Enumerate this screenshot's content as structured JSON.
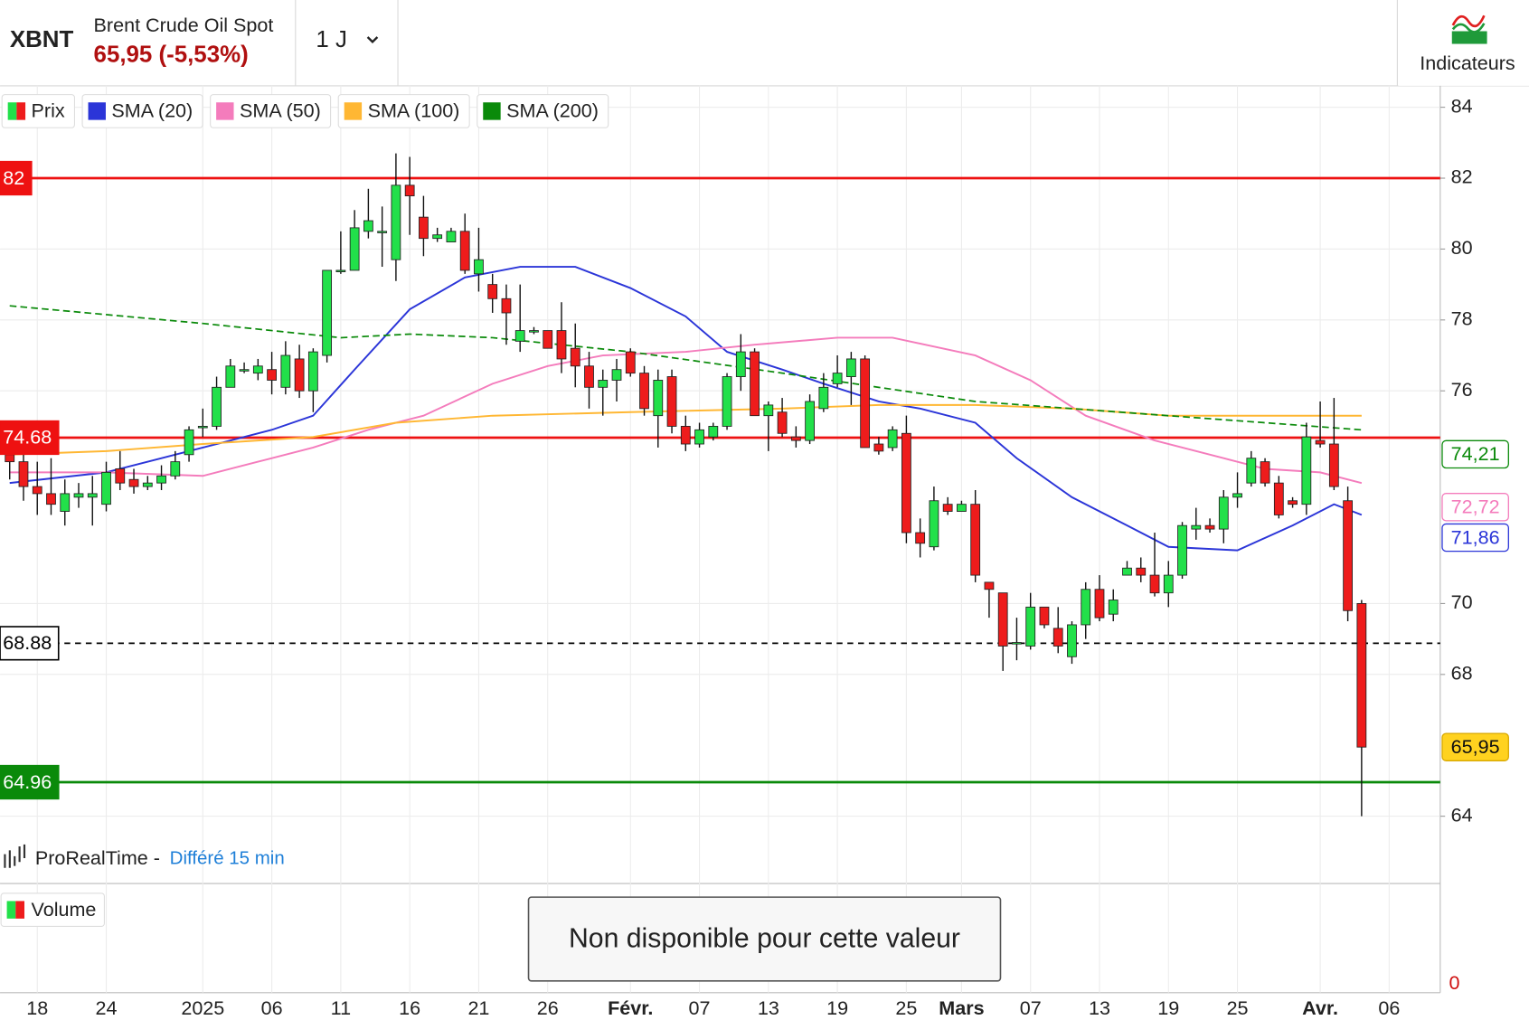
{
  "header": {
    "symbol": "XBNT",
    "name": "Brent Crude Oil Spot",
    "quote": "65,95 (-5,53%)",
    "interval": "1 J",
    "indicators_button": "Indicateurs"
  },
  "chart_data": {
    "type": "candlestick",
    "name": "Prix",
    "up_color": "#22e04a",
    "down_color": "#ee1c1c",
    "open": [
      74.2,
      74.0,
      73.3,
      73.1,
      72.6,
      73.0,
      73.0,
      72.8,
      73.8,
      73.5,
      73.3,
      73.4,
      73.6,
      74.2,
      75.0,
      75.0,
      76.1,
      76.6,
      76.5,
      76.6,
      76.1,
      76.9,
      76.0,
      77.0,
      79.4,
      79.4,
      80.5,
      80.5,
      79.7,
      81.8,
      80.9,
      80.3,
      80.2,
      80.5,
      79.3,
      79.0,
      78.6,
      77.4,
      77.7,
      77.7,
      77.7,
      77.2,
      76.7,
      76.1,
      76.3,
      77.1,
      76.5,
      75.3,
      76.4,
      75.0,
      74.5,
      74.7,
      75.0,
      76.4,
      77.1,
      75.3,
      75.4,
      74.7,
      74.6,
      75.5,
      76.2,
      76.4,
      76.9,
      74.5,
      74.4,
      74.8,
      72.0,
      71.6,
      72.8,
      72.6,
      72.8,
      70.6,
      70.3,
      68.9,
      68.8,
      69.9,
      69.3,
      68.5,
      69.4,
      70.4,
      69.7,
      70.8,
      71.0,
      70.8,
      70.3,
      70.8,
      72.1,
      72.2,
      72.1,
      73.0,
      73.4,
      74.0,
      73.4,
      72.9,
      72.8,
      74.6,
      74.5,
      72.9,
      70.0
    ],
    "high": [
      74.4,
      74.3,
      74.0,
      74.1,
      73.5,
      73.4,
      73.6,
      74.0,
      74.3,
      73.8,
      73.6,
      73.9,
      74.3,
      75.0,
      75.5,
      76.4,
      76.9,
      76.8,
      76.9,
      77.1,
      77.4,
      77.3,
      77.2,
      79.4,
      80.5,
      81.1,
      81.7,
      81.2,
      82.7,
      82.6,
      81.5,
      80.6,
      80.6,
      81.0,
      80.6,
      79.3,
      79.0,
      79.0,
      77.8,
      77.7,
      78.5,
      77.9,
      77.1,
      76.6,
      76.9,
      77.2,
      76.7,
      76.6,
      76.6,
      75.3,
      75.1,
      75.1,
      76.5,
      77.6,
      77.2,
      75.7,
      75.8,
      75.0,
      75.9,
      76.5,
      77.0,
      77.1,
      77.0,
      74.7,
      75.0,
      75.3,
      72.4,
      73.3,
      73.0,
      72.9,
      73.2,
      70.6,
      70.3,
      69.6,
      70.3,
      69.9,
      69.9,
      69.5,
      70.6,
      70.8,
      70.4,
      71.2,
      71.3,
      72.0,
      71.2,
      72.3,
      72.7,
      72.4,
      73.2,
      73.7,
      74.3,
      74.1,
      73.6,
      73.0,
      75.1,
      75.7,
      75.8,
      73.3,
      70.1
    ],
    "low": [
      73.5,
      72.9,
      72.5,
      72.5,
      72.2,
      72.7,
      72.2,
      72.6,
      73.2,
      73.1,
      73.2,
      73.2,
      73.5,
      74.0,
      74.7,
      74.9,
      76.1,
      76.5,
      76.3,
      75.9,
      75.9,
      75.8,
      75.4,
      76.8,
      79.3,
      79.4,
      80.3,
      79.5,
      79.1,
      80.4,
      79.8,
      80.2,
      80.2,
      79.3,
      78.8,
      78.2,
      77.3,
      77.1,
      77.6,
      77.2,
      76.5,
      76.1,
      75.5,
      75.3,
      75.7,
      76.4,
      75.3,
      74.4,
      74.8,
      74.3,
      74.4,
      74.6,
      74.9,
      76.0,
      75.3,
      74.3,
      74.7,
      74.4,
      74.5,
      75.4,
      76.1,
      75.6,
      74.4,
      74.2,
      74.3,
      71.7,
      71.3,
      71.5,
      72.5,
      72.6,
      70.6,
      69.6,
      68.1,
      68.4,
      68.7,
      69.3,
      68.6,
      68.3,
      69.0,
      69.5,
      69.5,
      70.8,
      70.6,
      70.2,
      69.9,
      70.7,
      71.8,
      72.0,
      71.7,
      72.7,
      73.3,
      73.3,
      72.4,
      72.7,
      72.5,
      74.4,
      73.2,
      69.5,
      64.0
    ],
    "close": [
      74.0,
      73.3,
      73.1,
      72.8,
      73.1,
      73.1,
      73.1,
      73.7,
      73.4,
      73.3,
      73.4,
      73.6,
      74.0,
      74.9,
      75.0,
      76.1,
      76.7,
      76.6,
      76.7,
      76.3,
      77.0,
      76.0,
      77.1,
      79.4,
      79.4,
      80.6,
      80.8,
      80.5,
      81.8,
      81.5,
      80.3,
      80.4,
      80.5,
      79.4,
      79.7,
      78.6,
      78.2,
      77.7,
      77.7,
      77.2,
      76.9,
      76.7,
      76.1,
      76.3,
      76.6,
      76.5,
      75.5,
      76.3,
      75.0,
      74.5,
      74.9,
      75.0,
      76.4,
      77.1,
      75.3,
      75.6,
      74.8,
      74.6,
      75.7,
      76.1,
      76.5,
      76.9,
      74.4,
      74.3,
      74.9,
      72.0,
      71.7,
      72.9,
      72.6,
      72.8,
      70.8,
      70.4,
      68.8,
      68.9,
      69.9,
      69.4,
      68.8,
      69.4,
      70.4,
      69.6,
      70.1,
      71.0,
      70.8,
      70.3,
      70.8,
      72.2,
      72.2,
      72.1,
      73.0,
      73.1,
      74.1,
      73.4,
      72.5,
      72.8,
      74.7,
      74.5,
      73.3,
      69.8,
      65.95
    ],
    "last": {
      "value": 65.95,
      "label": "65,95"
    },
    "xlim": [
      -0.7,
      103.7
    ],
    "ylim": [
      62.13,
      84.55
    ],
    "grid": true,
    "yticks": [
      64,
      68,
      70,
      76,
      78,
      80,
      82,
      84
    ],
    "xticks": [
      {
        "value": 2,
        "label": "18"
      },
      {
        "value": 7,
        "label": "24"
      },
      {
        "value": 14,
        "label": "2025"
      },
      {
        "value": 19,
        "label": "06"
      },
      {
        "value": 24,
        "label": "11"
      },
      {
        "value": 29,
        "label": "16"
      },
      {
        "value": 34,
        "label": "21"
      },
      {
        "value": 39,
        "label": "26"
      },
      {
        "value": 45,
        "label": "Févr."
      },
      {
        "value": 50,
        "label": "07"
      },
      {
        "value": 55,
        "label": "13"
      },
      {
        "value": 60,
        "label": "19"
      },
      {
        "value": 65,
        "label": "25"
      },
      {
        "value": 69,
        "label": "Mars"
      },
      {
        "value": 74,
        "label": "07"
      },
      {
        "value": 79,
        "label": "13"
      },
      {
        "value": 84,
        "label": "19"
      },
      {
        "value": 89,
        "label": "25"
      },
      {
        "value": 95,
        "label": "Avr."
      },
      {
        "value": 100,
        "label": "06"
      }
    ],
    "overlays": [
      {
        "name": "SMA (20)",
        "color": "#2b35d8",
        "x": [
          0,
          7,
          14,
          19,
          22,
          25,
          29,
          33,
          37,
          41,
          45,
          49,
          52,
          56,
          59,
          63,
          66,
          70,
          73,
          77,
          81,
          84,
          89,
          93,
          96,
          98
        ],
        "values": [
          73.4,
          73.7,
          74.4,
          74.9,
          75.3,
          76.6,
          78.3,
          79.2,
          79.5,
          79.5,
          78.9,
          78.1,
          77.1,
          76.6,
          76.2,
          75.7,
          75.5,
          75.1,
          74.1,
          73.0,
          72.2,
          71.6,
          71.5,
          72.2,
          72.8,
          72.5
        ],
        "last": {
          "value": 71.86,
          "label": "71,86"
        }
      },
      {
        "name": "SMA (50)",
        "color": "#f47cbc",
        "x": [
          0,
          7,
          14,
          18,
          22,
          26,
          30,
          35,
          39,
          43,
          49,
          54,
          60,
          64,
          70,
          74,
          78,
          83,
          88,
          91,
          95,
          98
        ],
        "values": [
          73.7,
          73.7,
          73.6,
          74.0,
          74.4,
          74.9,
          75.3,
          76.2,
          76.7,
          77.0,
          77.1,
          77.3,
          77.5,
          77.5,
          77.0,
          76.3,
          75.3,
          74.6,
          74.1,
          73.8,
          73.7,
          73.4
        ],
        "last": {
          "value": 72.72,
          "label": "72,72"
        }
      },
      {
        "name": "SMA (100)",
        "color": "#ffb733",
        "x": [
          0,
          7,
          14,
          22,
          28,
          35,
          45,
          56,
          63,
          70,
          77,
          84,
          91,
          98
        ],
        "values": [
          74.2,
          74.3,
          74.5,
          74.7,
          75.1,
          75.3,
          75.4,
          75.5,
          75.6,
          75.6,
          75.5,
          75.3,
          75.3,
          75.3
        ]
      },
      {
        "name": "SMA (200)",
        "color": "#0a8a0a",
        "dashed": true,
        "x": [
          0,
          14,
          24,
          29,
          35,
          45,
          56,
          63,
          70,
          77,
          84,
          91,
          98
        ],
        "values": [
          78.4,
          77.9,
          77.5,
          77.6,
          77.5,
          77.1,
          76.5,
          76.1,
          75.7,
          75.5,
          75.3,
          75.1,
          74.9
        ],
        "last": {
          "value": 74.21,
          "label": "74,21"
        }
      }
    ],
    "levels": [
      {
        "value": 82,
        "color": "#ee1111",
        "style": "solid"
      },
      {
        "value": 74.68,
        "color": "#ee1111",
        "style": "solid"
      },
      {
        "value": 68.88,
        "color": "#000000",
        "style": "dashed"
      },
      {
        "value": 64.96,
        "color": "#0a8a0a",
        "style": "solid"
      }
    ]
  },
  "source": {
    "provider": "ProRealTime -",
    "delay": "Différé 15 min"
  },
  "volume": {
    "legend": "Volume",
    "message": "Non disponible pour cette valeur",
    "yticks": [
      0
    ]
  }
}
